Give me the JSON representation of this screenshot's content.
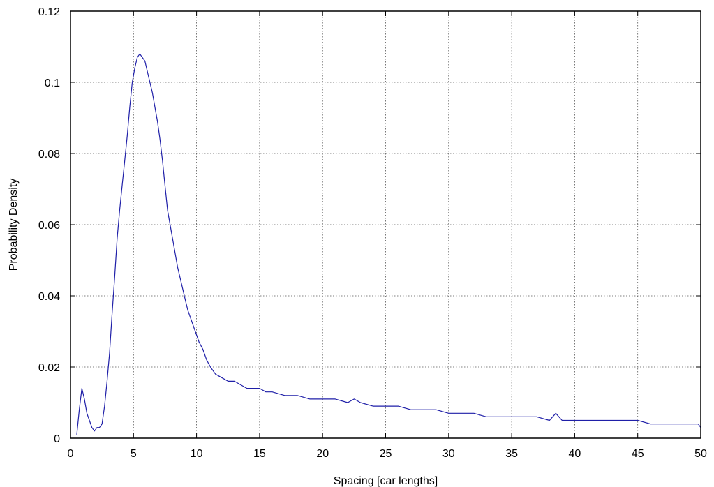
{
  "chart_data": {
    "type": "line",
    "title": "",
    "xlabel": "Spacing [car lengths]",
    "ylabel": "Probability Density",
    "xlim": [
      0,
      50
    ],
    "ylim": [
      0,
      0.12
    ],
    "grid": true,
    "xticks": [
      0,
      5,
      10,
      15,
      20,
      25,
      30,
      35,
      40,
      45,
      50
    ],
    "yticks": [
      0,
      0.02,
      0.04,
      0.06,
      0.08,
      0.1,
      0.12
    ],
    "xtick_labels": [
      "0",
      "5",
      "10",
      "15",
      "20",
      "25",
      "30",
      "35",
      "40",
      "45",
      "50"
    ],
    "ytick_labels": [
      "0",
      "0.02",
      "0.04",
      "0.06",
      "0.08",
      "0.1",
      "0.12"
    ],
    "line_color": "#1f1fa8",
    "series": [
      {
        "x": [
          0.5,
          0.7,
          0.9,
          1.1,
          1.3,
          1.5,
          1.7,
          1.9,
          2.1,
          2.3,
          2.5,
          2.7,
          2.9,
          3.1,
          3.3,
          3.5,
          3.7,
          3.9,
          4.1,
          4.3,
          4.5,
          4.7,
          4.9,
          5.1,
          5.3,
          5.5,
          5.7,
          5.9,
          6.1,
          6.3,
          6.5,
          6.7,
          6.9,
          7.1,
          7.3,
          7.5,
          7.7,
          7.9,
          8.1,
          8.3,
          8.5,
          8.7,
          8.9,
          9.1,
          9.3,
          9.5,
          9.7,
          9.9,
          10.2,
          10.5,
          10.8,
          11.1,
          11.5,
          12.0,
          12.5,
          13.0,
          13.5,
          14.0,
          14.5,
          15.0,
          15.5,
          16.0,
          17.0,
          18.0,
          19.0,
          20.0,
          21.0,
          22.0,
          22.5,
          23.0,
          24.0,
          25.0,
          26.0,
          27.0,
          28.0,
          29.0,
          30.0,
          31.0,
          32.0,
          33.0,
          34.0,
          35.0,
          36.0,
          37.0,
          38.0,
          38.5,
          39.0,
          40.0,
          41.0,
          42.0,
          43.0,
          44.0,
          45.0,
          46.0,
          47.0,
          48.0,
          49.0,
          49.5,
          49.8,
          50.0
        ],
        "values": [
          0.001,
          0.008,
          0.014,
          0.011,
          0.007,
          0.005,
          0.003,
          0.002,
          0.003,
          0.003,
          0.004,
          0.009,
          0.016,
          0.024,
          0.035,
          0.045,
          0.056,
          0.064,
          0.071,
          0.078,
          0.085,
          0.093,
          0.1,
          0.104,
          0.107,
          0.108,
          0.107,
          0.106,
          0.103,
          0.1,
          0.097,
          0.093,
          0.089,
          0.084,
          0.078,
          0.071,
          0.064,
          0.06,
          0.056,
          0.052,
          0.048,
          0.045,
          0.042,
          0.039,
          0.036,
          0.034,
          0.032,
          0.03,
          0.027,
          0.025,
          0.022,
          0.02,
          0.018,
          0.017,
          0.016,
          0.016,
          0.015,
          0.014,
          0.014,
          0.014,
          0.013,
          0.013,
          0.012,
          0.012,
          0.011,
          0.011,
          0.011,
          0.01,
          0.011,
          0.01,
          0.009,
          0.009,
          0.009,
          0.008,
          0.008,
          0.008,
          0.007,
          0.007,
          0.007,
          0.006,
          0.006,
          0.006,
          0.006,
          0.006,
          0.005,
          0.007,
          0.005,
          0.005,
          0.005,
          0.005,
          0.005,
          0.005,
          0.005,
          0.004,
          0.004,
          0.004,
          0.004,
          0.004,
          0.004,
          0.003
        ]
      }
    ]
  }
}
